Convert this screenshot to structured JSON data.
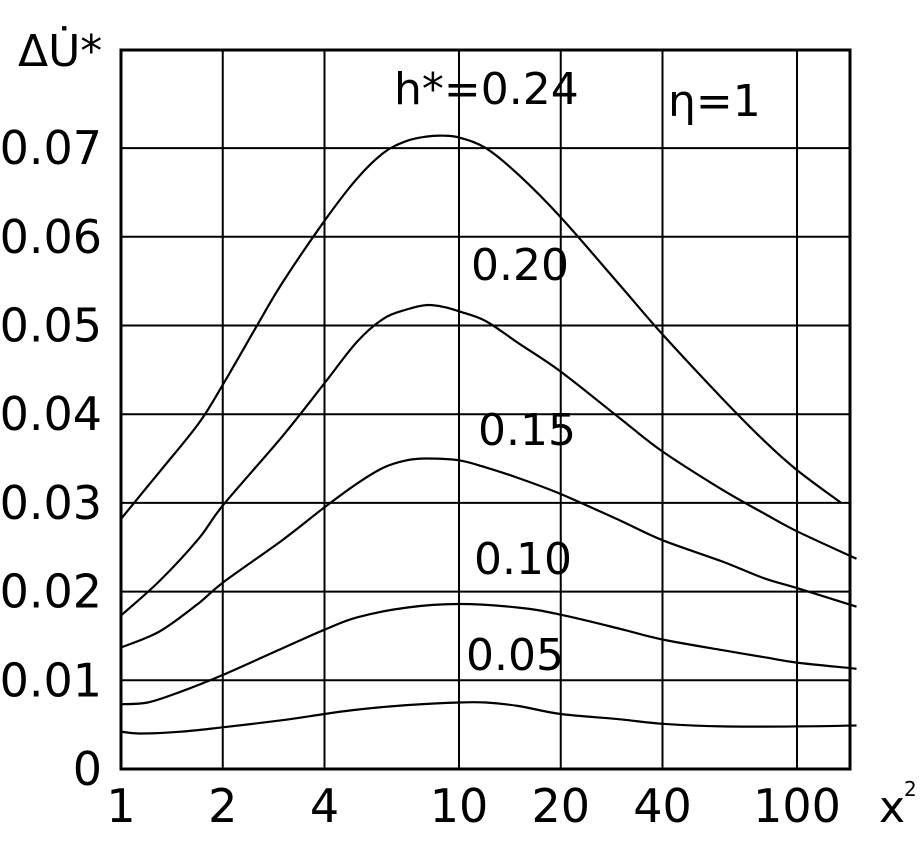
{
  "chart_data": {
    "type": "line",
    "title": "",
    "xlabel": "x",
    "xlabel_superscript": "2",
    "ylabel": "ΔU̇*",
    "x_scale": "log",
    "xlim": [
      1,
      150
    ],
    "ylim": [
      0,
      0.08
    ],
    "grid": true,
    "x_ticks": [
      1,
      2,
      4,
      10,
      20,
      40,
      100
    ],
    "x_tick_labels": [
      "1",
      "2",
      "4",
      "10",
      "20",
      "40",
      "100"
    ],
    "y_ticks": [
      0,
      0.01,
      0.02,
      0.03,
      0.04,
      0.05,
      0.06,
      0.07
    ],
    "y_tick_labels": [
      "0",
      "0.01",
      "0.02",
      "0.03",
      "0.04",
      "0.05",
      "0.06",
      "0.07"
    ],
    "annotation": "η=1",
    "series": [
      {
        "name": "h*=0.24",
        "label_text": "h*=0.24",
        "points": [
          [
            1,
            0.0282
          ],
          [
            1.3,
            0.0335
          ],
          [
            1.7,
            0.039
          ],
          [
            2,
            0.0433
          ],
          [
            2.5,
            0.0497
          ],
          [
            3,
            0.0548
          ],
          [
            4,
            0.0618
          ],
          [
            5,
            0.0666
          ],
          [
            6,
            0.0695
          ],
          [
            7,
            0.0708
          ],
          [
            8,
            0.0713
          ],
          [
            9,
            0.0714
          ],
          [
            10,
            0.0712
          ],
          [
            12,
            0.07
          ],
          [
            15,
            0.067
          ],
          [
            20,
            0.0622
          ],
          [
            30,
            0.0545
          ],
          [
            40,
            0.049
          ],
          [
            60,
            0.0418
          ],
          [
            80,
            0.037
          ],
          [
            100,
            0.0337
          ],
          [
            135,
            0.03
          ]
        ]
      },
      {
        "name": "0.20",
        "label_text": "0.20",
        "points": [
          [
            1,
            0.0173
          ],
          [
            1.3,
            0.0212
          ],
          [
            1.7,
            0.026
          ],
          [
            2,
            0.0297
          ],
          [
            3,
            0.0375
          ],
          [
            4,
            0.0435
          ],
          [
            5,
            0.0482
          ],
          [
            6,
            0.0508
          ],
          [
            7,
            0.0518
          ],
          [
            8,
            0.0523
          ],
          [
            9,
            0.0521
          ],
          [
            10,
            0.0516
          ],
          [
            12,
            0.0505
          ],
          [
            15,
            0.048
          ],
          [
            20,
            0.0448
          ],
          [
            30,
            0.0395
          ],
          [
            40,
            0.0358
          ],
          [
            60,
            0.0315
          ],
          [
            80,
            0.0288
          ],
          [
            100,
            0.0268
          ],
          [
            150,
            0.0237
          ]
        ]
      },
      {
        "name": "0.15",
        "label_text": "0.15",
        "points": [
          [
            1,
            0.0137
          ],
          [
            1.3,
            0.0155
          ],
          [
            1.7,
            0.0187
          ],
          [
            2,
            0.021
          ],
          [
            3,
            0.0258
          ],
          [
            4,
            0.0295
          ],
          [
            5,
            0.0322
          ],
          [
            6,
            0.034
          ],
          [
            7,
            0.0348
          ],
          [
            8,
            0.035
          ],
          [
            10,
            0.0348
          ],
          [
            12,
            0.034
          ],
          [
            15,
            0.0328
          ],
          [
            20,
            0.031
          ],
          [
            30,
            0.028
          ],
          [
            40,
            0.0258
          ],
          [
            60,
            0.0234
          ],
          [
            80,
            0.0215
          ],
          [
            100,
            0.0204
          ],
          [
            150,
            0.0183
          ]
        ]
      },
      {
        "name": "0.10",
        "label_text": "0.10",
        "points": [
          [
            1,
            0.0073
          ],
          [
            1.2,
            0.0075
          ],
          [
            1.5,
            0.0087
          ],
          [
            2,
            0.0106
          ],
          [
            3,
            0.0136
          ],
          [
            4,
            0.0157
          ],
          [
            5,
            0.0171
          ],
          [
            7,
            0.0182
          ],
          [
            10,
            0.0186
          ],
          [
            15,
            0.0182
          ],
          [
            20,
            0.0174
          ],
          [
            30,
            0.0158
          ],
          [
            40,
            0.0146
          ],
          [
            60,
            0.0134
          ],
          [
            80,
            0.0126
          ],
          [
            100,
            0.012
          ],
          [
            150,
            0.0113
          ]
        ]
      },
      {
        "name": "0.05",
        "label_text": "0.05",
        "points": [
          [
            1,
            0.0042
          ],
          [
            1.15,
            0.004
          ],
          [
            1.5,
            0.0042
          ],
          [
            2,
            0.0047
          ],
          [
            3,
            0.0055
          ],
          [
            4,
            0.0062
          ],
          [
            5,
            0.0067
          ],
          [
            7,
            0.0072
          ],
          [
            10,
            0.0075
          ],
          [
            12,
            0.0075
          ],
          [
            15,
            0.0071
          ],
          [
            20,
            0.0062
          ],
          [
            30,
            0.0056
          ],
          [
            40,
            0.0051
          ],
          [
            60,
            0.0048
          ],
          [
            100,
            0.0048
          ],
          [
            150,
            0.0049
          ]
        ]
      }
    ]
  }
}
